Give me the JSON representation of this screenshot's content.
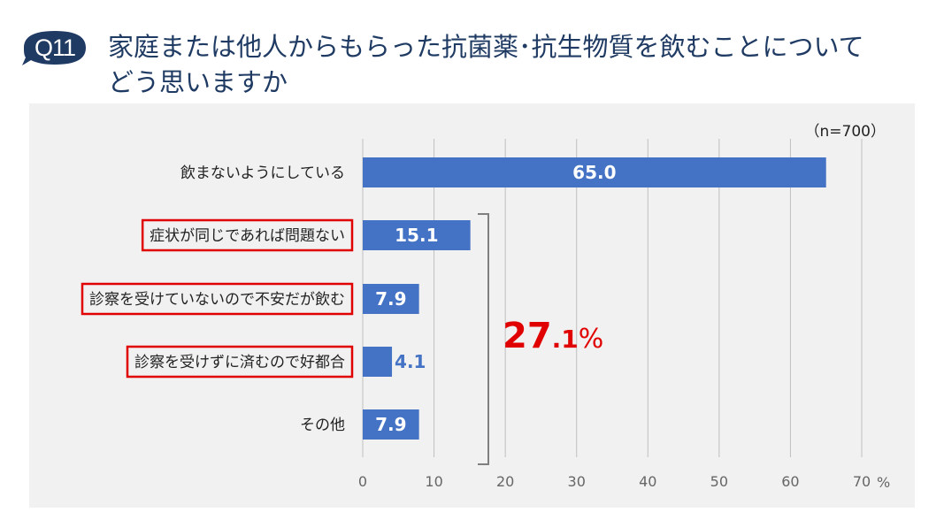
{
  "question": {
    "badge": "Q11",
    "title_line1": "家庭または他人からもらった抗菌薬･抗生物質を飲むことについて",
    "title_line2": "どう思いますか"
  },
  "chart_data": {
    "type": "bar",
    "orientation": "horizontal",
    "note": "（n=700）",
    "categories": [
      "飲まないようにしている",
      "症状が同じであれば問題ない",
      "診察を受けていないので不安だが飲む",
      "診察を受けずに済むので好都合",
      "その他"
    ],
    "values": [
      65.0,
      15.1,
      7.9,
      4.1,
      7.9
    ],
    "value_labels": [
      "65.0",
      "15.1",
      "7.9",
      "4.1",
      "7.9"
    ],
    "highlighted": [
      false,
      true,
      true,
      true,
      false
    ],
    "xlim": [
      0,
      70
    ],
    "xticks": [
      0,
      10,
      20,
      30,
      40,
      50,
      60,
      70
    ],
    "x_unit": "%",
    "grid": true,
    "bar_color": "#4472c4",
    "highlight_color": "#e00000",
    "bracket_total": {
      "number": "27",
      "decimal": ".1",
      "unit": "%"
    }
  }
}
